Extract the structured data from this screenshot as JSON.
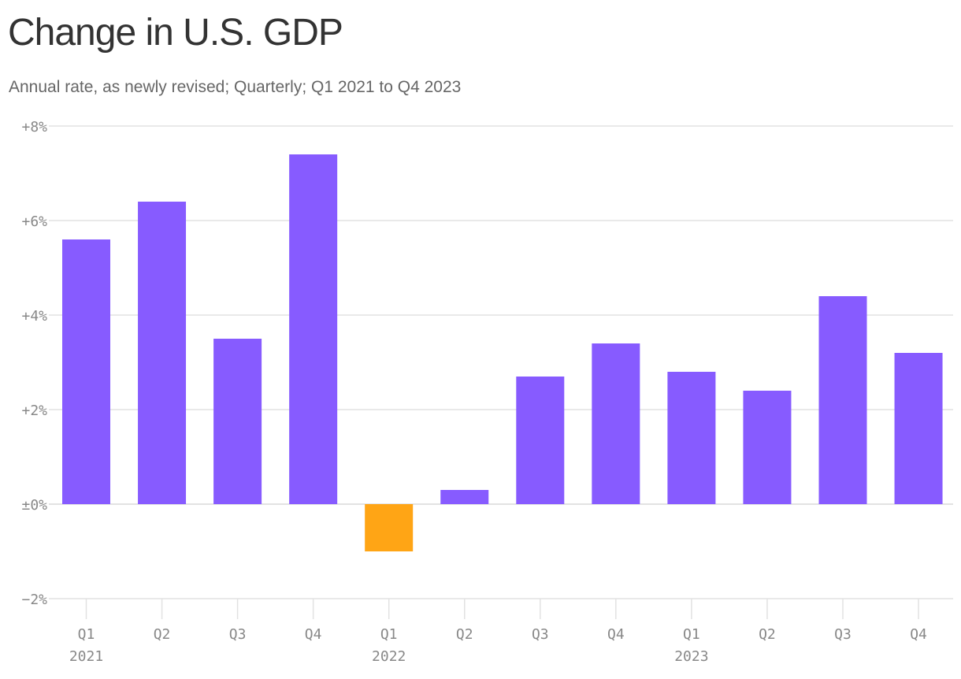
{
  "title": "Change in U.S. GDP",
  "subtitle": "Annual rate, as newly revised; Quarterly; Q1 2021 to Q4 2023",
  "chart_data": {
    "type": "bar",
    "title": "Change in U.S. GDP",
    "subtitle": "Annual rate, as newly revised; Quarterly; Q1 2021 to Q4 2023",
    "categories": [
      "Q1 2021",
      "Q2 2021",
      "Q3 2021",
      "Q4 2021",
      "Q1 2022",
      "Q2 2022",
      "Q3 2022",
      "Q4 2022",
      "Q1 2023",
      "Q2 2023",
      "Q3 2023",
      "Q4 2023"
    ],
    "quarter_labels": [
      "Q1",
      "Q2",
      "Q3",
      "Q4",
      "Q1",
      "Q2",
      "Q3",
      "Q4",
      "Q1",
      "Q2",
      "Q3",
      "Q4"
    ],
    "year_labels": [
      "2021",
      "",
      "",
      "",
      "2022",
      "",
      "",
      "",
      "2023",
      "",
      "",
      ""
    ],
    "values": [
      5.6,
      6.4,
      3.5,
      7.4,
      -1.0,
      0.3,
      2.7,
      3.4,
      2.8,
      2.4,
      4.4,
      3.2
    ],
    "ylim": [
      -2,
      8
    ],
    "yticks": [
      8,
      6,
      4,
      2,
      0,
      -2
    ],
    "ytick_labels": [
      "+8%",
      "+6%",
      "+4%",
      "+2%",
      "±0%",
      "−2%"
    ],
    "xlabel": "",
    "ylabel": "",
    "grid": true,
    "colors": {
      "positive": "#875BFF",
      "negative": "#FFA515",
      "grid": "#e2e2e2",
      "tick_text": "#888888"
    }
  }
}
